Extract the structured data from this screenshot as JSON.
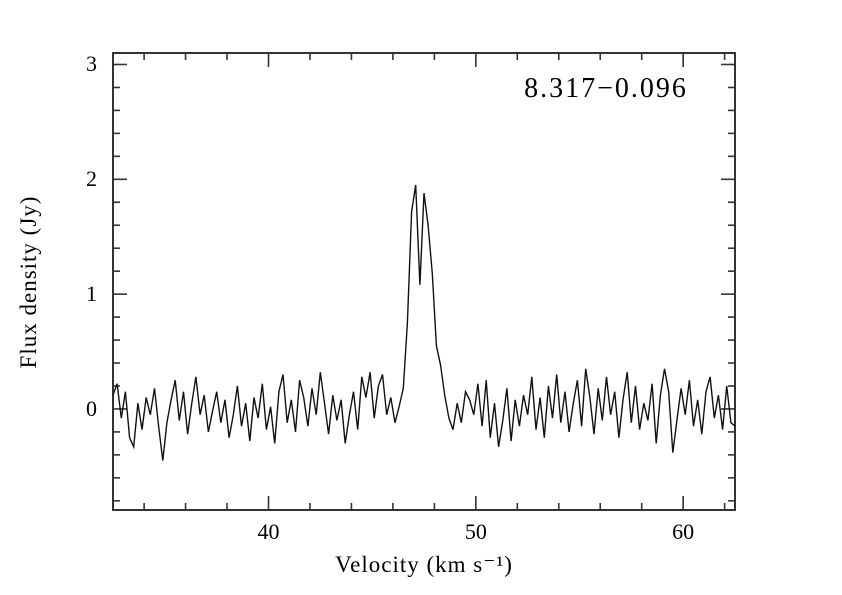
{
  "chart_data": {
    "type": "line",
    "annotation": "8.317−0.096",
    "xlabel": "Velocity (km s⁻¹)",
    "ylabel": "Flux density (Jy)",
    "xlim": [
      32.5,
      62.5
    ],
    "ylim": [
      -0.88,
      3.1
    ],
    "x_major_ticks": [
      40,
      50,
      60
    ],
    "x_minor_step": 2,
    "y_major_ticks": [
      0,
      1,
      2,
      3
    ],
    "y_minor_step": 0.2,
    "grid": false,
    "legend": "none",
    "frame_color": "#333333",
    "line_color": "#111111",
    "text_color": "#000000",
    "peak_flux_jy": 1.95,
    "peak_velocity_kms": 47.0,
    "series": [
      {
        "name": "spectrum",
        "x_start": 32.5,
        "x_step": 0.2,
        "y": [
          0.12,
          0.22,
          -0.08,
          0.15,
          -0.25,
          -0.33,
          0.05,
          -0.18,
          0.1,
          -0.05,
          0.18,
          -0.15,
          -0.45,
          -0.12,
          0.08,
          0.25,
          -0.1,
          0.15,
          -0.22,
          0.05,
          0.28,
          -0.05,
          0.12,
          -0.2,
          -0.02,
          0.15,
          -0.12,
          0.08,
          -0.25,
          -0.05,
          0.2,
          -0.15,
          0.05,
          -0.28,
          0.1,
          -0.08,
          0.22,
          -0.18,
          0.02,
          -0.3,
          0.15,
          0.3,
          -0.12,
          0.08,
          -0.2,
          0.25,
          0.1,
          -0.15,
          0.18,
          -0.05,
          0.32,
          0.05,
          -0.22,
          0.12,
          -0.1,
          0.08,
          -0.3,
          -0.05,
          0.15,
          -0.18,
          0.28,
          0.1,
          0.32,
          -0.08,
          0.2,
          0.3,
          -0.05,
          0.1,
          -0.12,
          0.02,
          0.18,
          0.75,
          1.72,
          1.95,
          1.08,
          1.88,
          1.6,
          1.18,
          0.55,
          0.38,
          0.12,
          -0.08,
          -0.18,
          0.05,
          -0.12,
          0.15,
          0.08,
          -0.05,
          0.22,
          -0.15,
          0.25,
          -0.25,
          0.05,
          -0.33,
          -0.1,
          0.18,
          -0.28,
          0.08,
          -0.15,
          0.12,
          -0.05,
          0.28,
          -0.18,
          0.1,
          -0.25,
          0.2,
          -0.08,
          0.3,
          -0.12,
          0.15,
          -0.2,
          0.05,
          0.25,
          -0.15,
          0.35,
          0.1,
          -0.22,
          0.18,
          -0.1,
          0.28,
          -0.05,
          0.15,
          -0.25,
          0.08,
          0.32,
          -0.12,
          0.2,
          -0.18,
          0.05,
          -0.1,
          0.22,
          -0.3,
          0.12,
          0.35,
          0.15,
          -0.38,
          -0.1,
          0.18,
          -0.05,
          0.25,
          -0.15,
          0.08,
          -0.22,
          0.15,
          0.28,
          -0.08,
          0.12,
          -0.18,
          0.2,
          -0.12,
          -0.15
        ]
      }
    ]
  }
}
